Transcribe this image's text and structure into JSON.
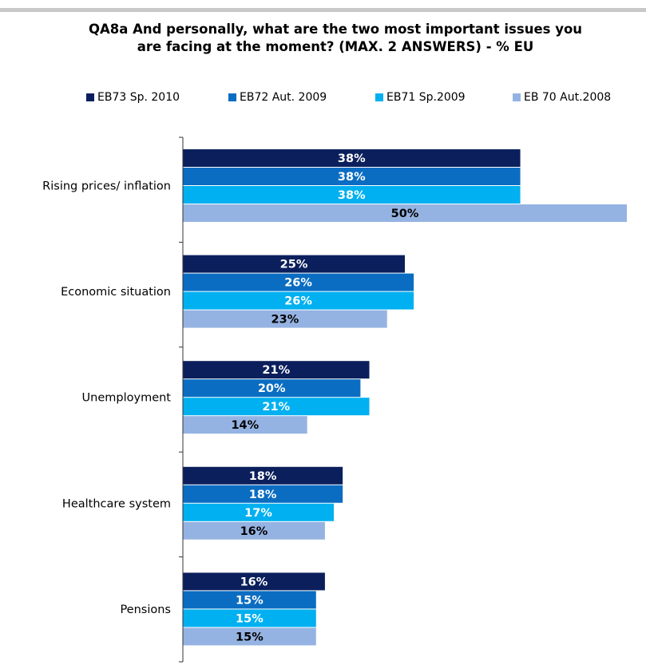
{
  "chart_data": {
    "type": "bar",
    "orientation": "horizontal",
    "title_lines": [
      "QA8a And personally, what are the two most important issues you",
      "are facing at the moment? (MAX. 2 ANSWERS) - % EU"
    ],
    "categories": [
      "Rising prices/ inflation",
      "Economic situation",
      "Unemployment",
      "Healthcare system",
      "Pensions"
    ],
    "series": [
      {
        "name": "EB73 Sp. 2010",
        "color": "#0b1f5c",
        "label_color": "#ffffff",
        "values": [
          38,
          25,
          21,
          18,
          16
        ]
      },
      {
        "name": "EB72 Aut. 2009",
        "color": "#0a6dc2",
        "label_color": "#ffffff",
        "values": [
          38,
          26,
          20,
          18,
          15
        ]
      },
      {
        "name": "EB71 Sp.2009",
        "color": "#00b0f0",
        "label_color": "#ffffff",
        "values": [
          38,
          26,
          21,
          17,
          15
        ]
      },
      {
        "name": "EB 70 Aut.2008",
        "color": "#95b3e2",
        "label_color": "#000000",
        "values": [
          50,
          23,
          14,
          16,
          15
        ]
      }
    ],
    "value_suffix": "%",
    "legend_position": "top",
    "xlim": [
      0,
      50
    ],
    "grid": false
  }
}
